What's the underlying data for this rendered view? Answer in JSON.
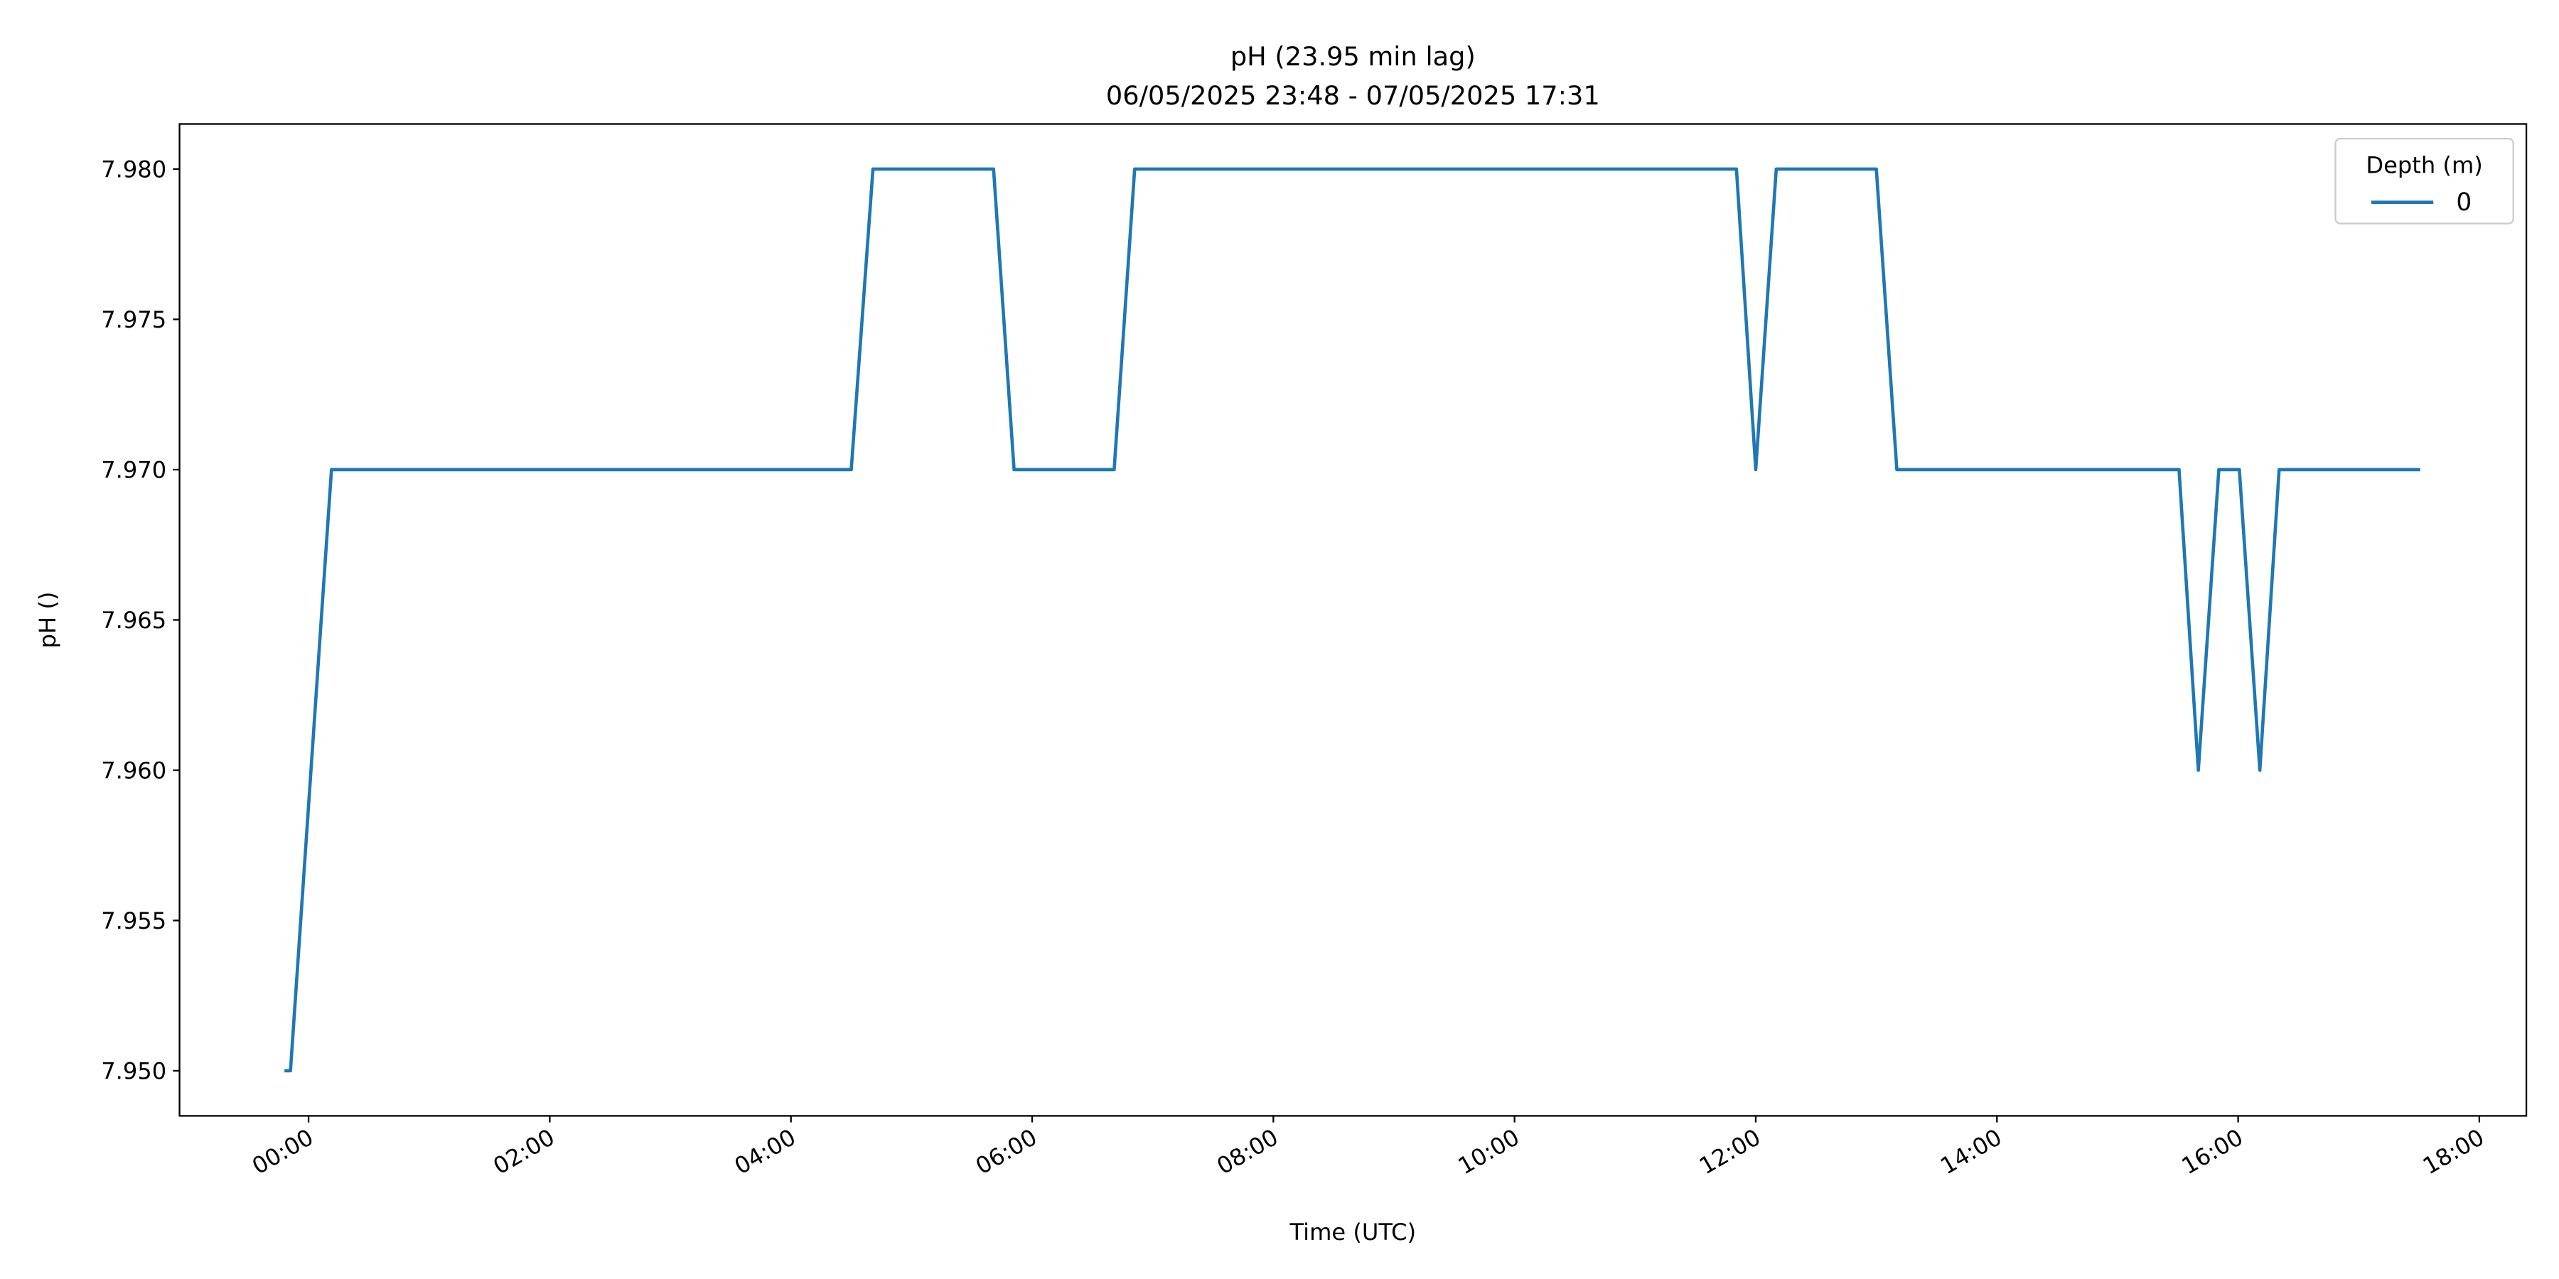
{
  "chart_data": {
    "type": "line",
    "title": "pH (23.95 min lag)",
    "subtitle": "06/05/2025 23:48 - 07/05/2025 17:31",
    "xlabel": "Time (UTC)",
    "ylabel": "pH ()",
    "legend_title": "Depth (m)",
    "legend_position": "upper right",
    "x": [
      -0.2,
      -0.15,
      0.19,
      4.5,
      4.68,
      5.68,
      5.85,
      6.68,
      6.85,
      11.84,
      12.0,
      12.17,
      13.0,
      13.17,
      15.51,
      15.67,
      15.84,
      16.01,
      16.18,
      16.34,
      17.51
    ],
    "series": [
      {
        "name": "0",
        "color": "#1f77b4",
        "values": [
          7.95,
          7.95,
          7.97,
          7.97,
          7.98,
          7.98,
          7.97,
          7.97,
          7.98,
          7.98,
          7.97,
          7.98,
          7.98,
          7.97,
          7.97,
          7.96,
          7.97,
          7.97,
          7.96,
          7.97,
          7.97
        ]
      }
    ],
    "xlim": [
      -1.07,
      18.39
    ],
    "ylim": [
      7.9485,
      7.9815
    ],
    "xticks": [
      {
        "value": 0,
        "label": "00:00"
      },
      {
        "value": 2,
        "label": "02:00"
      },
      {
        "value": 4,
        "label": "04:00"
      },
      {
        "value": 6,
        "label": "06:00"
      },
      {
        "value": 8,
        "label": "08:00"
      },
      {
        "value": 10,
        "label": "10:00"
      },
      {
        "value": 12,
        "label": "12:00"
      },
      {
        "value": 14,
        "label": "14:00"
      },
      {
        "value": 16,
        "label": "16:00"
      },
      {
        "value": 18,
        "label": "18:00"
      }
    ],
    "yticks": [
      {
        "value": 7.95,
        "label": "7.950"
      },
      7.955,
      {
        "value": 7.96,
        "label": "7.960"
      },
      7.965,
      {
        "value": 7.97,
        "label": "7.970"
      },
      7.975,
      {
        "value": 7.98,
        "label": "7.980"
      }
    ],
    "grid": false
  }
}
